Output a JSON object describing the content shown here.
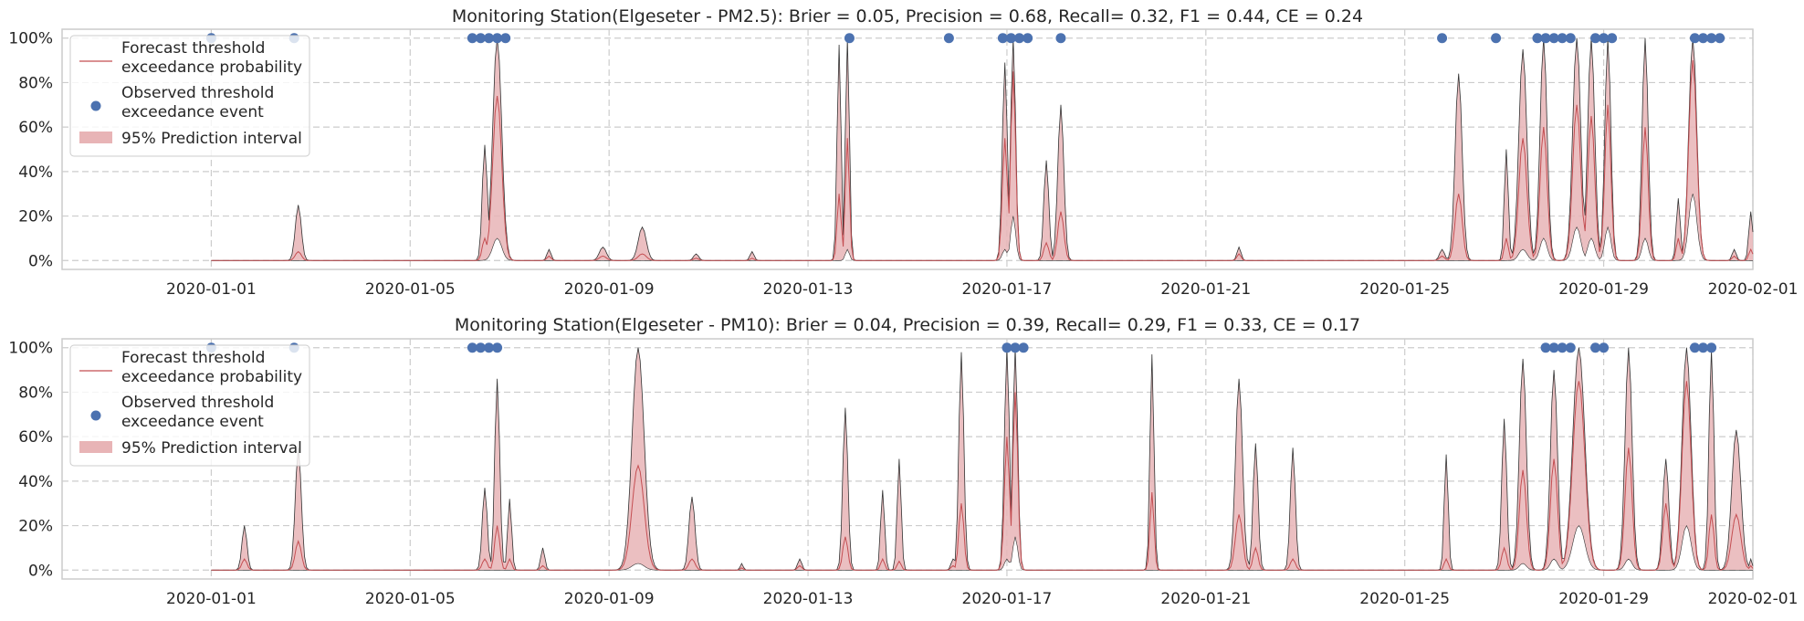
{
  "chart_data": [
    {
      "type": "line",
      "title": "Monitoring Station(Elgeseter - PM2.5): Brier = 0.05, Precision = 0.68, Recall= 0.32, F1 = 0.44, CE = 0.24",
      "xlim": [
        "2019-12-29",
        "2020-02-01"
      ],
      "ylim": [
        -0.04,
        1.04
      ],
      "x_ticks": [
        "2020-01-01",
        "2020-01-05",
        "2020-01-09",
        "2020-01-13",
        "2020-01-17",
        "2020-01-21",
        "2020-01-25",
        "2020-01-29",
        "2020-02-01"
      ],
      "y_ticks": [
        "0%",
        "20%",
        "40%",
        "60%",
        "80%",
        "100%"
      ],
      "grid": true,
      "legend_position": "top-left",
      "legend": [
        "Forecast threshold\n exceedance probability",
        "Observed threshold\n exceedance event",
        "95% Prediction interval"
      ],
      "peaks": [
        {
          "t": "2020-01-02 18:00",
          "w": 0.06,
          "p": 0.04,
          "lo": 0.0,
          "hi": 0.25
        },
        {
          "t": "2020-01-06 12:00",
          "w": 0.05,
          "p": 0.1,
          "lo": 0.0,
          "hi": 0.52
        },
        {
          "t": "2020-01-06 18:00",
          "w": 0.09,
          "p": 0.74,
          "lo": 0.1,
          "hi": 1.0
        },
        {
          "t": "2020-01-07 19:00",
          "w": 0.04,
          "p": 0.02,
          "lo": 0.0,
          "hi": 0.05
        },
        {
          "t": "2020-01-08 21:00",
          "w": 0.07,
          "p": 0.02,
          "lo": 0.0,
          "hi": 0.06
        },
        {
          "t": "2020-01-09 16:00",
          "w": 0.08,
          "p": 0.03,
          "lo": 0.0,
          "hi": 0.15
        },
        {
          "t": "2020-01-10 18:00",
          "w": 0.05,
          "p": 0.01,
          "lo": 0.0,
          "hi": 0.03
        },
        {
          "t": "2020-01-11 21:00",
          "w": 0.04,
          "p": 0.01,
          "lo": 0.0,
          "hi": 0.04
        },
        {
          "t": "2020-01-13 15:00",
          "w": 0.04,
          "p": 0.3,
          "lo": 0.0,
          "hi": 0.97
        },
        {
          "t": "2020-01-13 19:00",
          "w": 0.04,
          "p": 0.55,
          "lo": 0.05,
          "hi": 1.0
        },
        {
          "t": "2020-01-16 23:00",
          "w": 0.05,
          "p": 0.55,
          "lo": 0.05,
          "hi": 0.89
        },
        {
          "t": "2020-01-17 03:00",
          "w": 0.05,
          "p": 0.85,
          "lo": 0.2,
          "hi": 1.0
        },
        {
          "t": "2020-01-17 19:00",
          "w": 0.05,
          "p": 0.08,
          "lo": 0.0,
          "hi": 0.45
        },
        {
          "t": "2020-01-18 02:00",
          "w": 0.06,
          "p": 0.22,
          "lo": 0.0,
          "hi": 0.7
        },
        {
          "t": "2020-01-21 16:00",
          "w": 0.04,
          "p": 0.03,
          "lo": 0.0,
          "hi": 0.06
        },
        {
          "t": "2020-01-25 18:00",
          "w": 0.05,
          "p": 0.02,
          "lo": 0.0,
          "hi": 0.05
        },
        {
          "t": "2020-01-26 02:00",
          "w": 0.07,
          "p": 0.3,
          "lo": 0.0,
          "hi": 0.84
        },
        {
          "t": "2020-01-27 01:00",
          "w": 0.04,
          "p": 0.1,
          "lo": 0.0,
          "hi": 0.5
        },
        {
          "t": "2020-01-27 09:00",
          "w": 0.08,
          "p": 0.55,
          "lo": 0.05,
          "hi": 0.95
        },
        {
          "t": "2020-01-27 19:00",
          "w": 0.07,
          "p": 0.6,
          "lo": 0.1,
          "hi": 1.0
        },
        {
          "t": "2020-01-28 11:00",
          "w": 0.08,
          "p": 0.7,
          "lo": 0.15,
          "hi": 1.0
        },
        {
          "t": "2020-01-28 18:00",
          "w": 0.07,
          "p": 0.65,
          "lo": 0.1,
          "hi": 1.0
        },
        {
          "t": "2020-01-29 02:00",
          "w": 0.06,
          "p": 0.7,
          "lo": 0.15,
          "hi": 1.0
        },
        {
          "t": "2020-01-29 20:00",
          "w": 0.06,
          "p": 0.6,
          "lo": 0.1,
          "hi": 1.0
        },
        {
          "t": "2020-01-30 12:00",
          "w": 0.04,
          "p": 0.1,
          "lo": 0.0,
          "hi": 0.28
        },
        {
          "t": "2020-01-30 19:00",
          "w": 0.08,
          "p": 0.9,
          "lo": 0.3,
          "hi": 1.0
        },
        {
          "t": "2020-01-31 15:00",
          "w": 0.04,
          "p": 0.02,
          "lo": 0.0,
          "hi": 0.05
        },
        {
          "t": "2020-01-31 23:00",
          "w": 0.04,
          "p": 0.05,
          "lo": 0.0,
          "hi": 0.22
        }
      ],
      "observed_events": [
        "2020-01-01 00:00",
        "2020-01-02 16:00",
        "2020-01-06 06:00",
        "2020-01-06 10:00",
        "2020-01-06 14:00",
        "2020-01-06 18:00",
        "2020-01-06 22:00",
        "2020-01-13 20:00",
        "2020-01-15 20:00",
        "2020-01-16 22:00",
        "2020-01-17 02:00",
        "2020-01-17 06:00",
        "2020-01-17 10:00",
        "2020-01-18 02:00",
        "2020-01-25 18:00",
        "2020-01-26 20:00",
        "2020-01-27 16:00",
        "2020-01-27 20:00",
        "2020-01-28 00:00",
        "2020-01-28 04:00",
        "2020-01-28 08:00",
        "2020-01-28 20:00",
        "2020-01-29 00:00",
        "2020-01-29 04:00",
        "2020-01-30 20:00",
        "2020-01-31 00:00",
        "2020-01-31 04:00",
        "2020-01-31 08:00"
      ]
    },
    {
      "type": "line",
      "title": "Monitoring Station(Elgeseter - PM10): Brier = 0.04, Precision = 0.39, Recall= 0.29, F1 = 0.33, CE = 0.17",
      "xlim": [
        "2019-12-29",
        "2020-02-01"
      ],
      "ylim": [
        -0.04,
        1.04
      ],
      "x_ticks": [
        "2020-01-01",
        "2020-01-05",
        "2020-01-09",
        "2020-01-13",
        "2020-01-17",
        "2020-01-21",
        "2020-01-25",
        "2020-01-29",
        "2020-02-01"
      ],
      "y_ticks": [
        "0%",
        "20%",
        "40%",
        "60%",
        "80%",
        "100%"
      ],
      "grid": true,
      "legend_position": "top-left",
      "legend": [
        "Forecast threshold\n exceedance probability",
        "Observed threshold\n exceedance event",
        "95% Prediction interval"
      ],
      "peaks": [
        {
          "t": "2020-01-01 16:00",
          "w": 0.05,
          "p": 0.05,
          "lo": 0.0,
          "hi": 0.2
        },
        {
          "t": "2020-01-02 18:00",
          "w": 0.06,
          "p": 0.13,
          "lo": 0.0,
          "hi": 0.55
        },
        {
          "t": "2020-01-06 12:00",
          "w": 0.05,
          "p": 0.05,
          "lo": 0.0,
          "hi": 0.37
        },
        {
          "t": "2020-01-06 18:00",
          "w": 0.05,
          "p": 0.2,
          "lo": 0.0,
          "hi": 0.86
        },
        {
          "t": "2020-01-07 00:00",
          "w": 0.04,
          "p": 0.05,
          "lo": 0.0,
          "hi": 0.32
        },
        {
          "t": "2020-01-07 16:00",
          "w": 0.04,
          "p": 0.02,
          "lo": 0.0,
          "hi": 0.1
        },
        {
          "t": "2020-01-09 14:00",
          "w": 0.12,
          "p": 0.47,
          "lo": 0.03,
          "hi": 1.0
        },
        {
          "t": "2020-01-10 16:00",
          "w": 0.06,
          "p": 0.05,
          "lo": 0.0,
          "hi": 0.33
        },
        {
          "t": "2020-01-11 16:00",
          "w": 0.03,
          "p": 0.01,
          "lo": 0.0,
          "hi": 0.03
        },
        {
          "t": "2020-01-12 20:00",
          "w": 0.04,
          "p": 0.02,
          "lo": 0.0,
          "hi": 0.05
        },
        {
          "t": "2020-01-13 18:00",
          "w": 0.05,
          "p": 0.15,
          "lo": 0.0,
          "hi": 0.73
        },
        {
          "t": "2020-01-14 12:00",
          "w": 0.04,
          "p": 0.05,
          "lo": 0.0,
          "hi": 0.36
        },
        {
          "t": "2020-01-14 20:00",
          "w": 0.04,
          "p": 0.04,
          "lo": 0.0,
          "hi": 0.5
        },
        {
          "t": "2020-01-15 22:00",
          "w": 0.04,
          "p": 0.02,
          "lo": 0.0,
          "hi": 0.05
        },
        {
          "t": "2020-01-16 02:00",
          "w": 0.05,
          "p": 0.3,
          "lo": 0.0,
          "hi": 0.98
        },
        {
          "t": "2020-01-17 00:00",
          "w": 0.05,
          "p": 0.6,
          "lo": 0.05,
          "hi": 1.0
        },
        {
          "t": "2020-01-17 04:00",
          "w": 0.05,
          "p": 0.8,
          "lo": 0.15,
          "hi": 1.0
        },
        {
          "t": "2020-01-19 22:00",
          "w": 0.04,
          "p": 0.35,
          "lo": 0.0,
          "hi": 0.97
        },
        {
          "t": "2020-01-21 16:00",
          "w": 0.07,
          "p": 0.25,
          "lo": 0.0,
          "hi": 0.86
        },
        {
          "t": "2020-01-22 00:00",
          "w": 0.05,
          "p": 0.1,
          "lo": 0.0,
          "hi": 0.57
        },
        {
          "t": "2020-01-22 18:00",
          "w": 0.05,
          "p": 0.05,
          "lo": 0.0,
          "hi": 0.55
        },
        {
          "t": "2020-01-25 20:00",
          "w": 0.04,
          "p": 0.05,
          "lo": 0.0,
          "hi": 0.52
        },
        {
          "t": "2020-01-27 00:00",
          "w": 0.05,
          "p": 0.1,
          "lo": 0.0,
          "hi": 0.68
        },
        {
          "t": "2020-01-27 09:00",
          "w": 0.07,
          "p": 0.45,
          "lo": 0.03,
          "hi": 0.95
        },
        {
          "t": "2020-01-28 00:00",
          "w": 0.07,
          "p": 0.5,
          "lo": 0.05,
          "hi": 0.9
        },
        {
          "t": "2020-01-28 12:00",
          "w": 0.12,
          "p": 0.85,
          "lo": 0.2,
          "hi": 1.0
        },
        {
          "t": "2020-01-29 12:00",
          "w": 0.07,
          "p": 0.55,
          "lo": 0.05,
          "hi": 1.0
        },
        {
          "t": "2020-01-30 06:00",
          "w": 0.06,
          "p": 0.3,
          "lo": 0.0,
          "hi": 0.5
        },
        {
          "t": "2020-01-30 16:00",
          "w": 0.09,
          "p": 0.85,
          "lo": 0.2,
          "hi": 1.0
        },
        {
          "t": "2020-01-31 04:00",
          "w": 0.05,
          "p": 0.25,
          "lo": 0.0,
          "hi": 0.99
        },
        {
          "t": "2020-01-31 16:00",
          "w": 0.09,
          "p": 0.25,
          "lo": 0.0,
          "hi": 0.63
        },
        {
          "t": "2020-01-31 23:00",
          "w": 0.03,
          "p": 0.02,
          "lo": 0.0,
          "hi": 0.05
        }
      ],
      "observed_events": [
        "2020-01-01 00:00",
        "2020-01-02 16:00",
        "2020-01-06 06:00",
        "2020-01-06 10:00",
        "2020-01-06 14:00",
        "2020-01-06 18:00",
        "2020-01-17 00:00",
        "2020-01-17 04:00",
        "2020-01-17 08:00",
        "2020-01-27 20:00",
        "2020-01-28 00:00",
        "2020-01-28 04:00",
        "2020-01-28 08:00",
        "2020-01-28 20:00",
        "2020-01-29 00:00",
        "2020-01-30 20:00",
        "2020-01-31 00:00",
        "2020-01-31 04:00"
      ]
    }
  ],
  "colors": {
    "forecast_line": "#c44e52",
    "interval_fill": "#e8b4b6",
    "interval_edge": "#333333",
    "observed_marker": "#4c72b0",
    "grid": "#cccccc",
    "axes_edge": "#cccccc",
    "text": "#262626"
  }
}
